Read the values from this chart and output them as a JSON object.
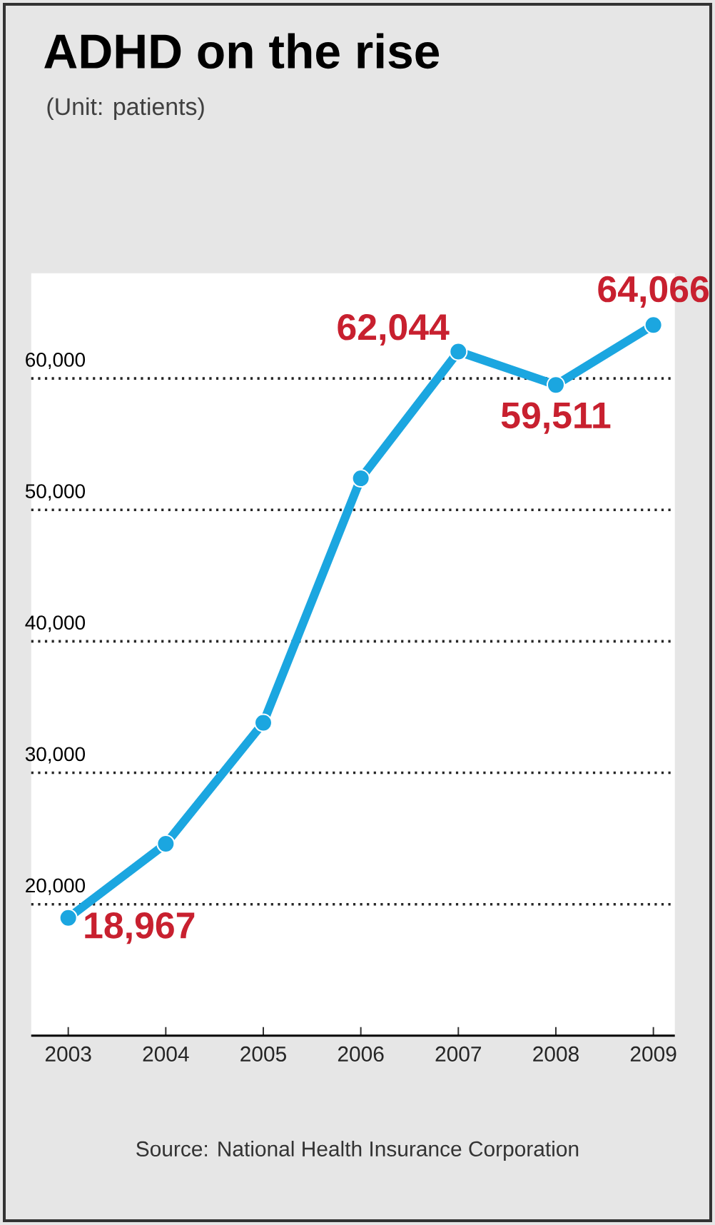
{
  "chart_data": {
    "type": "line",
    "title": "ADHD on the rise",
    "subtitle": "(Unit: patients)",
    "categories": [
      "2003",
      "2004",
      "2005",
      "2006",
      "2007",
      "2008",
      "2009"
    ],
    "series": [
      {
        "color": "#1ba6e0",
        "values": [
          18967,
          24600,
          33800,
          52400,
          62044,
          59511,
          64066
        ],
        "value_labels": [
          "18,967",
          null,
          null,
          null,
          "62,044",
          "59,511",
          "64,066"
        ]
      }
    ],
    "ylim": [
      10000,
      68000
    ],
    "yticks": [
      {
        "value": 20000,
        "label": "20,000"
      },
      {
        "value": 30000,
        "label": "30,000"
      },
      {
        "value": 40000,
        "label": "40,000"
      },
      {
        "value": 50000,
        "label": "50,000"
      },
      {
        "value": 60000,
        "label": "60,000"
      }
    ],
    "grid": "y",
    "marker": "circle",
    "line_style": "solid",
    "annotations": [
      "Source: National Health Insurance Corporation"
    ]
  }
}
